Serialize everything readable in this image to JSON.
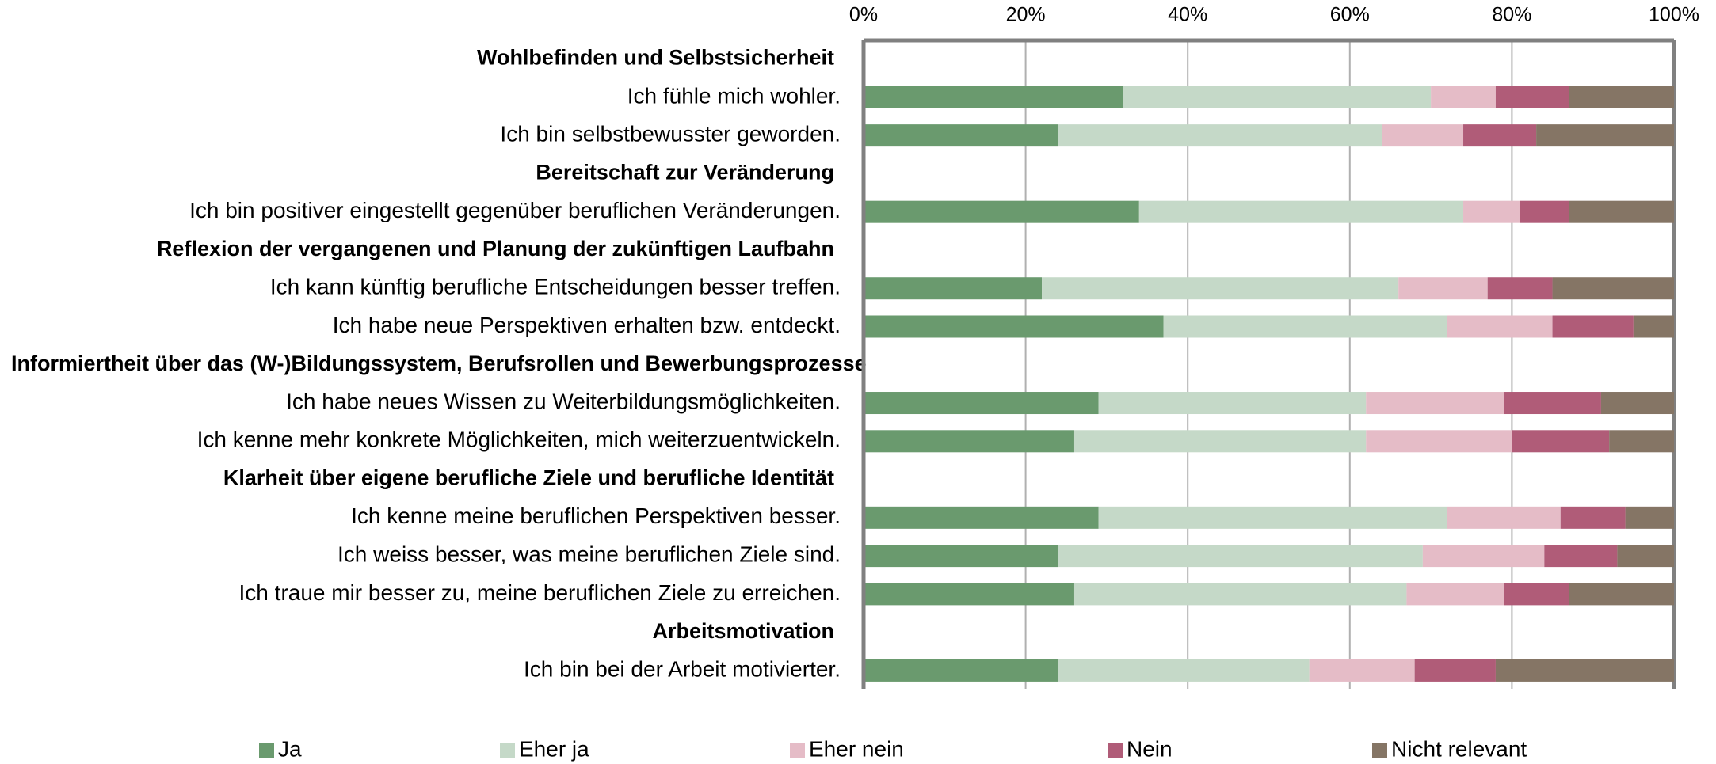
{
  "chart_data": {
    "type": "stacked_bar_horizontal",
    "categories": [
      "Wohlbefinden und Selbstsicherheit",
      "Ich fühle mich wohler.",
      "Ich bin selbstbewusster geworden.",
      "Bereitschaft zur Veränderung",
      "Ich bin positiver eingestellt gegenüber beruflichen Veränderungen.",
      "Reflexion der vergangenen und Planung der zukünftigen Laufbahn",
      "Ich kann künftig berufliche Entscheidungen besser treffen.",
      "Ich habe neue Perspektiven erhalten bzw. entdeckt.",
      "Informiertheit über das (W-)Bildungssystem, Berufsrollen und Bewerbungsprozesse",
      "Ich habe neues Wissen zu Weiterbildungsmöglichkeiten.",
      "Ich kenne mehr konkrete Möglichkeiten, mich weiterzuentwickeln.",
      "Klarheit über eigene berufliche Ziele und berufliche Identität",
      "Ich kenne meine beruflichen Perspektiven besser.",
      "Ich weiss besser, was meine beruflichen Ziele sind.",
      "Ich traue mir besser zu, meine beruflichen Ziele zu erreichen.",
      "Arbeitsmotivation",
      "Ich bin bei der Arbeit motivierter."
    ],
    "series": [
      {
        "name": "Ja",
        "color": "#6a9a6e",
        "values": [
          null,
          32,
          24,
          null,
          34,
          null,
          22,
          37,
          null,
          29,
          26,
          null,
          29,
          24,
          26,
          null,
          24
        ]
      },
      {
        "name": "Eher ja",
        "color": "#c5d9c8",
        "values": [
          null,
          38,
          40,
          null,
          40,
          null,
          44,
          35,
          null,
          33,
          36,
          null,
          43,
          45,
          41,
          null,
          31
        ]
      },
      {
        "name": "Eher nein",
        "color": "#e5bcc7",
        "values": [
          null,
          8,
          10,
          null,
          7,
          null,
          11,
          13,
          null,
          17,
          18,
          null,
          14,
          15,
          12,
          null,
          13
        ]
      },
      {
        "name": "Nein",
        "color": "#b05c78",
        "values": [
          null,
          9,
          9,
          null,
          6,
          null,
          8,
          10,
          null,
          12,
          12,
          null,
          8,
          9,
          8,
          null,
          10
        ]
      },
      {
        "name": "Nicht relevant",
        "color": "#857565",
        "values": [
          null,
          13,
          17,
          null,
          13,
          null,
          15,
          5,
          null,
          9,
          8,
          null,
          6,
          7,
          13,
          null,
          22
        ]
      }
    ],
    "xlim": [
      0,
      100
    ],
    "xticks": [
      {
        "value": 0,
        "label": "0%"
      },
      {
        "value": 20,
        "label": "20%"
      },
      {
        "value": 40,
        "label": "40%"
      },
      {
        "value": 60,
        "label": "60%"
      },
      {
        "value": 80,
        "label": "80%"
      },
      {
        "value": 100,
        "label": "100%"
      }
    ],
    "grid": true,
    "legend": "bottom"
  }
}
